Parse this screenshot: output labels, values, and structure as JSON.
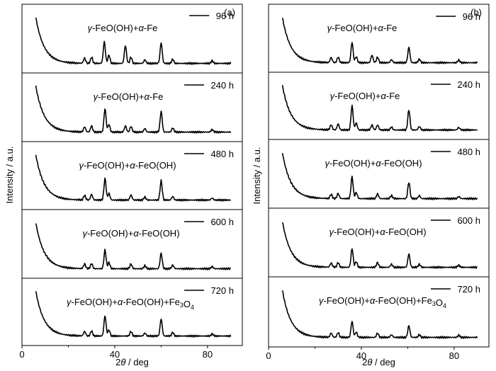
{
  "chart_data": [
    {
      "type": "line",
      "panel_label": "(a)",
      "xlabel": "2θ / deg",
      "ylabel": "Intensity / a.u.",
      "xlim": [
        0,
        95
      ],
      "xticks": [
        0,
        40,
        80
      ],
      "grid": false,
      "stacked_traces": [
        {
          "name": "96 h",
          "annotation": "γ-FeO(OH)+α-Fe",
          "peaks": [
            {
              "x": 27.0,
              "h": 0.1
            },
            {
              "x": 30.0,
              "h": 0.12
            },
            {
              "x": 35.5,
              "h": 0.42
            },
            {
              "x": 37.5,
              "h": 0.16
            },
            {
              "x": 44.6,
              "h": 0.35
            },
            {
              "x": 47.0,
              "h": 0.12
            },
            {
              "x": 53.0,
              "h": 0.07
            },
            {
              "x": 60.0,
              "h": 0.4
            },
            {
              "x": 65.0,
              "h": 0.08
            },
            {
              "x": 82.0,
              "h": 0.05
            }
          ]
        },
        {
          "name": "240 h",
          "annotation": "γ-FeO(OH)+α-Fe",
          "peaks": [
            {
              "x": 27.0,
              "h": 0.1
            },
            {
              "x": 30.0,
              "h": 0.12
            },
            {
              "x": 35.8,
              "h": 0.45
            },
            {
              "x": 37.5,
              "h": 0.15
            },
            {
              "x": 44.6,
              "h": 0.12
            },
            {
              "x": 47.0,
              "h": 0.11
            },
            {
              "x": 53.0,
              "h": 0.07
            },
            {
              "x": 60.0,
              "h": 0.4
            },
            {
              "x": 65.0,
              "h": 0.08
            },
            {
              "x": 82.0,
              "h": 0.05
            }
          ]
        },
        {
          "name": "480 h",
          "annotation": "γ-FeO(OH)+α-FeO(OH)",
          "peaks": [
            {
              "x": 27.0,
              "h": 0.09
            },
            {
              "x": 30.0,
              "h": 0.11
            },
            {
              "x": 35.8,
              "h": 0.42
            },
            {
              "x": 37.5,
              "h": 0.13
            },
            {
              "x": 47.0,
              "h": 0.1
            },
            {
              "x": 53.0,
              "h": 0.06
            },
            {
              "x": 60.0,
              "h": 0.38
            },
            {
              "x": 65.0,
              "h": 0.07
            },
            {
              "x": 82.0,
              "h": 0.04
            }
          ]
        },
        {
          "name": "600 h",
          "annotation": "γ-FeO(OH)+α-FeO(OH)",
          "peaks": [
            {
              "x": 27.0,
              "h": 0.09
            },
            {
              "x": 30.0,
              "h": 0.1
            },
            {
              "x": 35.8,
              "h": 0.36
            },
            {
              "x": 37.5,
              "h": 0.12
            },
            {
              "x": 47.0,
              "h": 0.09
            },
            {
              "x": 53.0,
              "h": 0.06
            },
            {
              "x": 60.0,
              "h": 0.3
            },
            {
              "x": 65.0,
              "h": 0.07
            },
            {
              "x": 82.0,
              "h": 0.04
            }
          ]
        },
        {
          "name": "720 h",
          "annotation": "γ-FeO(OH)+α-FeO(OH)+Fe3O4",
          "peaks": [
            {
              "x": 27.0,
              "h": 0.09
            },
            {
              "x": 30.0,
              "h": 0.1
            },
            {
              "x": 35.8,
              "h": 0.4
            },
            {
              "x": 37.5,
              "h": 0.12
            },
            {
              "x": 47.0,
              "h": 0.09
            },
            {
              "x": 53.0,
              "h": 0.06
            },
            {
              "x": 60.0,
              "h": 0.34
            },
            {
              "x": 65.0,
              "h": 0.07
            },
            {
              "x": 82.0,
              "h": 0.04
            }
          ]
        }
      ]
    },
    {
      "type": "line",
      "panel_label": "(b)",
      "xlabel": "2θ / deg",
      "ylabel": "Intensity / a.u.",
      "xlim": [
        0,
        95
      ],
      "xticks": [
        0,
        40,
        80
      ],
      "grid": false,
      "stacked_traces": [
        {
          "name": "96 h",
          "annotation": "γ-FeO(OH)+α-Fe",
          "peaks": [
            {
              "x": 27.0,
              "h": 0.1
            },
            {
              "x": 30.0,
              "h": 0.11
            },
            {
              "x": 36.0,
              "h": 0.4
            },
            {
              "x": 37.8,
              "h": 0.12
            },
            {
              "x": 44.6,
              "h": 0.15
            },
            {
              "x": 47.0,
              "h": 0.11
            },
            {
              "x": 53.0,
              "h": 0.06
            },
            {
              "x": 60.5,
              "h": 0.3
            },
            {
              "x": 65.0,
              "h": 0.07
            },
            {
              "x": 82.0,
              "h": 0.05
            }
          ]
        },
        {
          "name": "240 h",
          "annotation": "γ-FeO(OH)+α-Fe",
          "peaks": [
            {
              "x": 27.0,
              "h": 0.1
            },
            {
              "x": 30.0,
              "h": 0.12
            },
            {
              "x": 36.0,
              "h": 0.48
            },
            {
              "x": 37.8,
              "h": 0.14
            },
            {
              "x": 44.6,
              "h": 0.1
            },
            {
              "x": 47.0,
              "h": 0.1
            },
            {
              "x": 53.0,
              "h": 0.06
            },
            {
              "x": 60.5,
              "h": 0.4
            },
            {
              "x": 65.0,
              "h": 0.07
            },
            {
              "x": 82.0,
              "h": 0.05
            }
          ]
        },
        {
          "name": "480 h",
          "annotation": "γ-FeO(OH)+α-FeO(OH)",
          "peaks": [
            {
              "x": 27.0,
              "h": 0.08
            },
            {
              "x": 30.0,
              "h": 0.1
            },
            {
              "x": 36.0,
              "h": 0.42
            },
            {
              "x": 37.8,
              "h": 0.12
            },
            {
              "x": 47.0,
              "h": 0.09
            },
            {
              "x": 53.0,
              "h": 0.06
            },
            {
              "x": 60.5,
              "h": 0.32
            },
            {
              "x": 65.0,
              "h": 0.06
            },
            {
              "x": 82.0,
              "h": 0.04
            }
          ]
        },
        {
          "name": "600 h",
          "annotation": "γ-FeO(OH)+α-FeO(OH)",
          "peaks": [
            {
              "x": 27.0,
              "h": 0.08
            },
            {
              "x": 30.0,
              "h": 0.09
            },
            {
              "x": 36.0,
              "h": 0.36
            },
            {
              "x": 37.8,
              "h": 0.11
            },
            {
              "x": 47.0,
              "h": 0.09
            },
            {
              "x": 53.0,
              "h": 0.06
            },
            {
              "x": 60.5,
              "h": 0.26
            },
            {
              "x": 65.0,
              "h": 0.06
            },
            {
              "x": 82.0,
              "h": 0.04
            }
          ]
        },
        {
          "name": "720 h",
          "annotation": "γ-FeO(OH)+α-FeO(OH)+Fe3O4",
          "peaks": [
            {
              "x": 27.0,
              "h": 0.08
            },
            {
              "x": 30.0,
              "h": 0.09
            },
            {
              "x": 36.0,
              "h": 0.3
            },
            {
              "x": 37.8,
              "h": 0.1
            },
            {
              "x": 47.0,
              "h": 0.08
            },
            {
              "x": 53.0,
              "h": 0.05
            },
            {
              "x": 60.5,
              "h": 0.22
            },
            {
              "x": 65.0,
              "h": 0.05
            },
            {
              "x": 82.0,
              "h": 0.04
            }
          ]
        }
      ]
    }
  ]
}
